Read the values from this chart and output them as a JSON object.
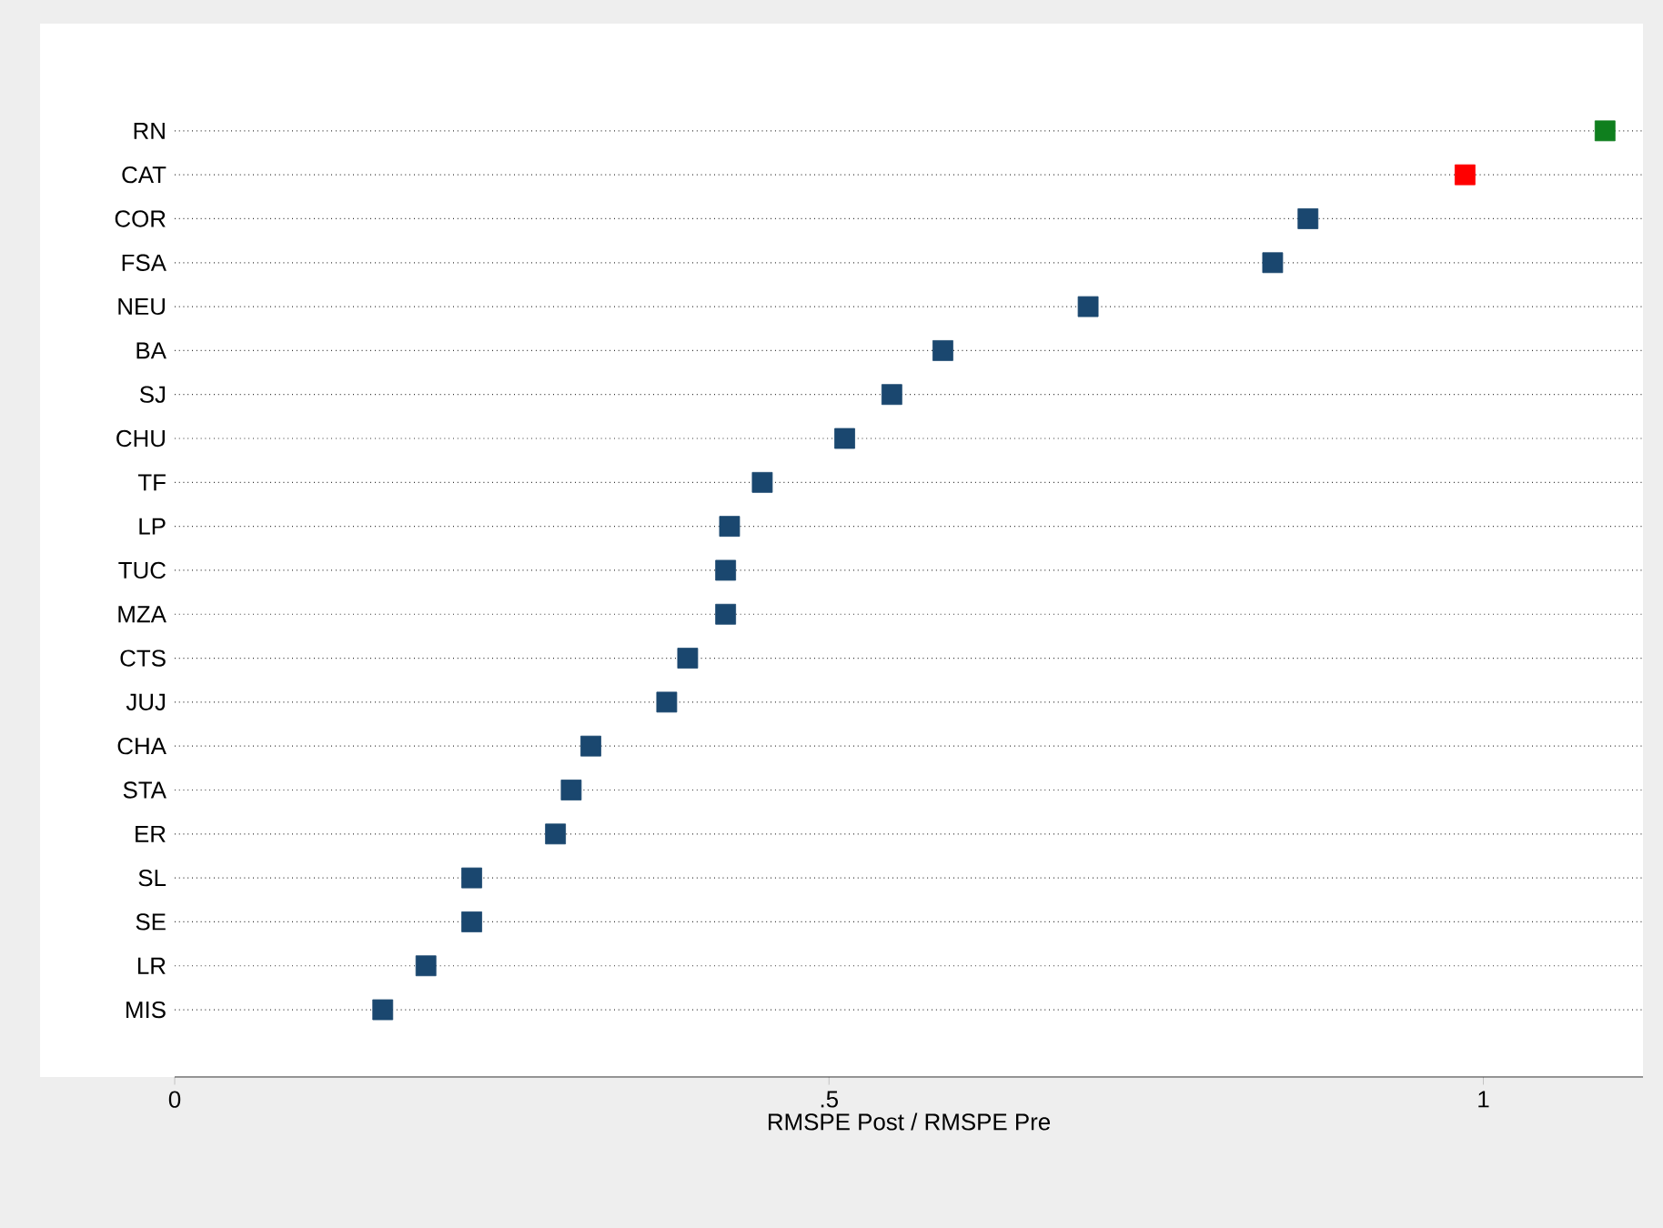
{
  "chart_data": {
    "type": "scatter",
    "orientation": "horizontal",
    "xlabel": "RMSPE Post / RMSPE Pre",
    "categories": [
      "RN",
      "CAT",
      "COR",
      "FSA",
      "NEU",
      "BA",
      "SJ",
      "CHU",
      "TF",
      "LP",
      "TUC",
      "MZA",
      "CTS",
      "JUJ",
      "CHA",
      "STA",
      "ER",
      "SL",
      "SE",
      "LR",
      "MIS"
    ],
    "values": [
      1.093,
      0.986,
      0.866,
      0.839,
      0.698,
      0.587,
      0.548,
      0.512,
      0.449,
      0.424,
      0.421,
      0.421,
      0.392,
      0.376,
      0.318,
      0.303,
      0.291,
      0.227,
      0.227,
      0.192,
      0.159
    ],
    "colors": [
      "#0f7f1e",
      "#ff0000",
      "#1a476f",
      "#1a476f",
      "#1a476f",
      "#1a476f",
      "#1a476f",
      "#1a476f",
      "#1a476f",
      "#1a476f",
      "#1a476f",
      "#1a476f",
      "#1a476f",
      "#1a476f",
      "#1a476f",
      "#1a476f",
      "#1a476f",
      "#1a476f",
      "#1a476f",
      "#1a476f",
      "#1a476f"
    ],
    "xlim": [
      0,
      1.122
    ],
    "xticks": [
      0,
      {
        "value": 0.5,
        "label": ".5"
      },
      1
    ],
    "grid": "y",
    "marker": "square"
  }
}
